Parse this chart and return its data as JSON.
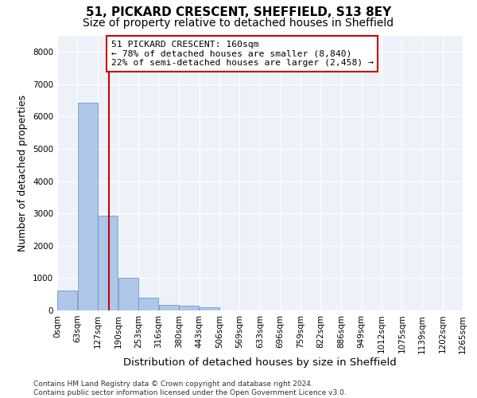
{
  "title_line1": "51, PICKARD CRESCENT, SHEFFIELD, S13 8EY",
  "title_line2": "Size of property relative to detached houses in Sheffield",
  "xlabel": "Distribution of detached houses by size in Sheffield",
  "ylabel": "Number of detached properties",
  "bar_color": "#aec6e8",
  "bar_edge_color": "#5a8fc2",
  "property_line_color": "#cc0000",
  "property_size": 160,
  "annotation_text": "51 PICKARD CRESCENT: 160sqm\n← 78% of detached houses are smaller (8,840)\n22% of semi-detached houses are larger (2,458) →",
  "bin_edges": [
    0,
    63,
    127,
    190,
    253,
    316,
    380,
    443,
    506,
    569,
    633,
    696,
    759,
    822,
    886,
    949,
    1012,
    1075,
    1139,
    1202,
    1265
  ],
  "bar_heights": [
    620,
    6430,
    2920,
    1000,
    390,
    170,
    145,
    90,
    0,
    0,
    0,
    0,
    0,
    0,
    0,
    0,
    0,
    0,
    0,
    0
  ],
  "ylim": [
    0,
    8500
  ],
  "yticks": [
    0,
    1000,
    2000,
    3000,
    4000,
    5000,
    6000,
    7000,
    8000
  ],
  "background_color": "#eef2f8",
  "grid_color": "#ffffff",
  "footnote": "Contains HM Land Registry data © Crown copyright and database right 2024.\nContains public sector information licensed under the Open Government Licence v3.0.",
  "title_fontsize": 11,
  "subtitle_fontsize": 10,
  "tick_fontsize": 7.5,
  "ylabel_fontsize": 9,
  "xlabel_fontsize": 9.5
}
